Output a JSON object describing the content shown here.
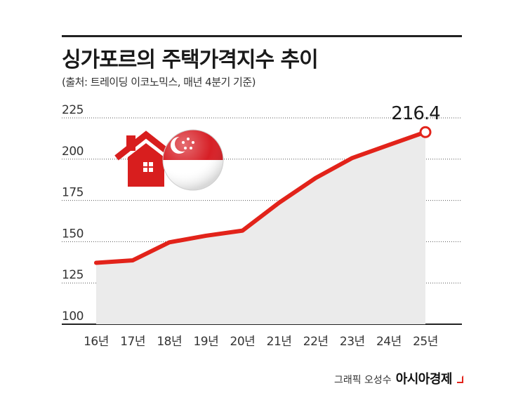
{
  "header": {
    "title": "싱가포르의 주택가격지수 추이",
    "subtitle": "(출처: 트레이딩 이코노믹스, 매년 4분기 기준)"
  },
  "footer": {
    "credit": "그래픽 오성수",
    "brand": "아시아경제"
  },
  "colors": {
    "line": "#e2231a",
    "area": "#ebebeb",
    "grid": "#555555",
    "house": "#d81e1e"
  },
  "icons": [
    "house-icon",
    "singapore-flag-icon"
  ],
  "chart_data": {
    "type": "area",
    "title": "싱가포르의 주택가격지수 추이",
    "categories": [
      "16년",
      "17년",
      "18년",
      "19년",
      "20년",
      "21년",
      "22년",
      "23년",
      "24년",
      "25년"
    ],
    "values": [
      137.2,
      138.7,
      149.6,
      153.6,
      156.7,
      173.6,
      188.6,
      200.7,
      208.6,
      216.4
    ],
    "y_ticks": [
      "225",
      "200",
      "175",
      "150",
      "125",
      "100"
    ],
    "ylim": [
      100,
      225
    ],
    "grid": "dotted horizontal",
    "last_value_label": "216.4",
    "xlabel": "",
    "ylabel": ""
  }
}
